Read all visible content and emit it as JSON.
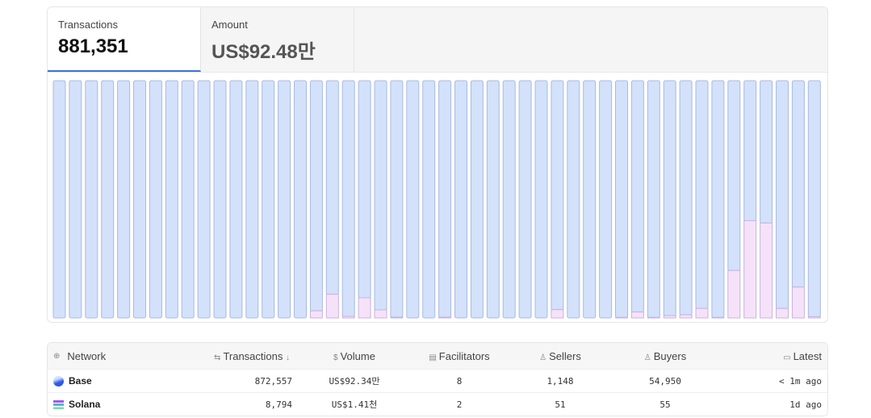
{
  "tabs": [
    {
      "label": "Transactions",
      "value": "881,351",
      "active": true
    },
    {
      "label": "Amount",
      "value": "US$92.48만",
      "active": false
    }
  ],
  "chart_data": {
    "type": "bar",
    "stacked": "percent",
    "series": [
      {
        "key": "base",
        "color": "#d3e1fb",
        "border": "#a9b9e6"
      },
      {
        "key": "solana",
        "color": "#f6e2f8",
        "border": "#c9b2e0",
        "values": [
          0,
          0,
          0,
          0,
          0,
          0,
          0,
          0,
          0,
          0,
          0,
          0,
          0,
          0,
          0,
          0,
          3,
          10,
          0.7,
          8.5,
          3.4,
          0.3,
          0,
          0,
          0.3,
          0,
          0,
          0,
          0,
          0,
          0,
          3.5,
          0,
          0,
          0,
          0.2,
          2.5,
          0.2,
          1,
          1.3,
          4,
          0.2,
          20,
          41,
          40,
          4,
          13,
          0.5
        ]
      }
    ],
    "ylim": [
      0,
      100
    ],
    "grid": false
  },
  "table": {
    "headers": [
      {
        "icon": "globe-icon",
        "glyph": "⊕",
        "label": "Network"
      },
      {
        "icon": "arrows-icon",
        "glyph": "⇆",
        "label": "Transactions",
        "sort": "↓"
      },
      {
        "icon": "dollar-icon",
        "glyph": "$",
        "label": "Volume"
      },
      {
        "icon": "server-icon",
        "glyph": "▤",
        "label": "Facilitators"
      },
      {
        "icon": "user-icon",
        "glyph": "♙",
        "label": "Sellers"
      },
      {
        "icon": "user-icon",
        "glyph": "♙",
        "label": "Buyers"
      },
      {
        "icon": "calendar-icon",
        "glyph": "▭",
        "label": "Latest"
      }
    ],
    "rows": [
      {
        "network": "Base",
        "transactions": "872,557",
        "volume": "US$92.34만",
        "facilitators": "8",
        "sellers": "1,148",
        "buyers": "54,950",
        "latest": "< 1m ago"
      },
      {
        "network": "Solana",
        "transactions": "8,794",
        "volume": "US$1.41천",
        "facilitators": "2",
        "sellers": "51",
        "buyers": "55",
        "latest": "1d ago"
      }
    ]
  }
}
